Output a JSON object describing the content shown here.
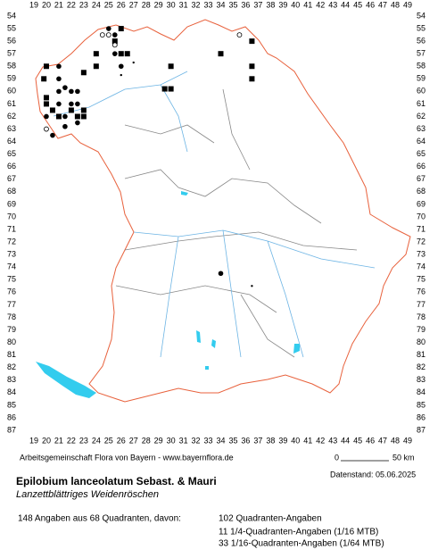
{
  "grid": {
    "columns": [
      19,
      20,
      21,
      22,
      23,
      24,
      25,
      26,
      27,
      28,
      29,
      30,
      31,
      32,
      33,
      34,
      35,
      36,
      37,
      38,
      39,
      40,
      41,
      42,
      43,
      44,
      45,
      46,
      47,
      48,
      49
    ],
    "rows": [
      54,
      55,
      56,
      57,
      58,
      59,
      60,
      61,
      62,
      63,
      64,
      65,
      66,
      67,
      68,
      69,
      70,
      71,
      72,
      73,
      74,
      75,
      76,
      77,
      78,
      79,
      80,
      81,
      82,
      83,
      84,
      85,
      86,
      87
    ]
  },
  "markers": [
    {
      "col": 20,
      "row": 58,
      "kind": "square"
    },
    {
      "col": 19.8,
      "row": 59,
      "kind": "square"
    },
    {
      "col": 20,
      "row": 60.5,
      "kind": "square"
    },
    {
      "col": 20,
      "row": 61,
      "kind": "square"
    },
    {
      "col": 20.5,
      "row": 61.5,
      "kind": "square"
    },
    {
      "col": 21,
      "row": 62,
      "kind": "square"
    },
    {
      "col": 22,
      "row": 61.5,
      "kind": "square"
    },
    {
      "col": 22.5,
      "row": 62,
      "kind": "square"
    },
    {
      "col": 23,
      "row": 62,
      "kind": "square"
    },
    {
      "col": 23,
      "row": 61.5,
      "kind": "square"
    },
    {
      "col": 24,
      "row": 58,
      "kind": "square"
    },
    {
      "col": 23,
      "row": 58.5,
      "kind": "square"
    },
    {
      "col": 24,
      "row": 57,
      "kind": "square"
    },
    {
      "col": 25.5,
      "row": 56,
      "kind": "square"
    },
    {
      "col": 26,
      "row": 55,
      "kind": "square"
    },
    {
      "col": 26,
      "row": 57,
      "kind": "square"
    },
    {
      "col": 26.5,
      "row": 57,
      "kind": "square"
    },
    {
      "col": 30,
      "row": 58,
      "kind": "square"
    },
    {
      "col": 29.5,
      "row": 59.8,
      "kind": "square"
    },
    {
      "col": 30,
      "row": 59.8,
      "kind": "square"
    },
    {
      "col": 34,
      "row": 57,
      "kind": "square"
    },
    {
      "col": 36.5,
      "row": 56,
      "kind": "square"
    },
    {
      "col": 36.5,
      "row": 58,
      "kind": "square"
    },
    {
      "col": 36.5,
      "row": 59,
      "kind": "square"
    },
    {
      "col": 21,
      "row": 58,
      "kind": "dot"
    },
    {
      "col": 21,
      "row": 59,
      "kind": "dot"
    },
    {
      "col": 21.5,
      "row": 59.7,
      "kind": "dot"
    },
    {
      "col": 21,
      "row": 60,
      "kind": "dot"
    },
    {
      "col": 22,
      "row": 60,
      "kind": "dot"
    },
    {
      "col": 22.5,
      "row": 60,
      "kind": "dot"
    },
    {
      "col": 21,
      "row": 61,
      "kind": "dot"
    },
    {
      "col": 22,
      "row": 61,
      "kind": "dot"
    },
    {
      "col": 22.5,
      "row": 61,
      "kind": "dot"
    },
    {
      "col": 21.5,
      "row": 62,
      "kind": "dot"
    },
    {
      "col": 22.5,
      "row": 62.5,
      "kind": "dot"
    },
    {
      "col": 21.5,
      "row": 62.8,
      "kind": "dot"
    },
    {
      "col": 20.5,
      "row": 63.5,
      "kind": "dot"
    },
    {
      "col": 20,
      "row": 62,
      "kind": "dot"
    },
    {
      "col": 25,
      "row": 55,
      "kind": "dot"
    },
    {
      "col": 25.5,
      "row": 55.5,
      "kind": "dot"
    },
    {
      "col": 25.5,
      "row": 57,
      "kind": "dot"
    },
    {
      "col": 26,
      "row": 58,
      "kind": "dot"
    },
    {
      "col": 34,
      "row": 74.5,
      "kind": "dot"
    },
    {
      "col": 27,
      "row": 57.7,
      "kind": "small"
    },
    {
      "col": 26,
      "row": 58.7,
      "kind": "small"
    },
    {
      "col": 36.5,
      "row": 75.5,
      "kind": "small"
    },
    {
      "col": 24.5,
      "row": 55.5,
      "kind": "circle"
    },
    {
      "col": 25,
      "row": 55.5,
      "kind": "circle"
    },
    {
      "col": 35.5,
      "row": 55.5,
      "kind": "circle"
    },
    {
      "col": 20,
      "row": 63,
      "kind": "circle"
    },
    {
      "col": 25.5,
      "row": 56.3,
      "kind": "circle"
    }
  ],
  "credit": "Arbeitsgemeinschaft Flora von Bayern - www.bayernflora.de",
  "scale": {
    "start": "0",
    "end": "50 km"
  },
  "date": "Datenstand: 05.06.2025",
  "title": "Epilobium lanceolatum Sebast. & Mauri",
  "subtitle": "Lanzettblättriges Weidenröschen",
  "summary": "148 Angaben aus 68 Quadranten, davon:",
  "counts": [
    "102 Quadranten-Angaben",
    "11 1/4-Quadranten-Angaben (1/16 MTB)",
    "33 1/16-Quadranten-Angaben (1/64 MTB)"
  ]
}
